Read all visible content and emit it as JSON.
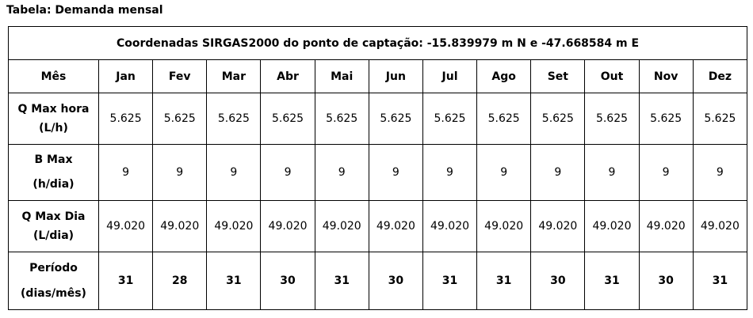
{
  "title": "Tabela: Demanda mensal",
  "table": {
    "caption": "Coordenadas SIRGAS2000 do ponto de captação: -15.839979 m N e -47.668584 m E",
    "header_first": "Mês",
    "months": [
      "Jan",
      "Fev",
      "Mar",
      "Abr",
      "Mai",
      "Jun",
      "Jul",
      "Ago",
      "Set",
      "Out",
      "Nov",
      "Dez"
    ],
    "rows": [
      {
        "label_line1": "Q Max hora",
        "label_line2": "(L/h)",
        "values": [
          "5.625",
          "5.625",
          "5.625",
          "5.625",
          "5.625",
          "5.625",
          "5.625",
          "5.625",
          "5.625",
          "5.625",
          "5.625",
          "5.625"
        ]
      },
      {
        "label_line1": "B Max",
        "label_line2": "(h/dia)",
        "values": [
          "9",
          "9",
          "9",
          "9",
          "9",
          "9",
          "9",
          "9",
          "9",
          "9",
          "9",
          "9"
        ]
      },
      {
        "label_line1": "Q Max Dia",
        "label_line2": "(L/dia)",
        "values": [
          "49.020",
          "49.020",
          "49.020",
          "49.020",
          "49.020",
          "49.020",
          "49.020",
          "49.020",
          "49.020",
          "49.020",
          "49.020",
          "49.020"
        ]
      },
      {
        "label_line1": "Período",
        "label_line2": "(dias/mês)",
        "values": [
          "31",
          "28",
          "31",
          "30",
          "31",
          "30",
          "31",
          "31",
          "30",
          "31",
          "30",
          "31"
        ]
      }
    ]
  }
}
